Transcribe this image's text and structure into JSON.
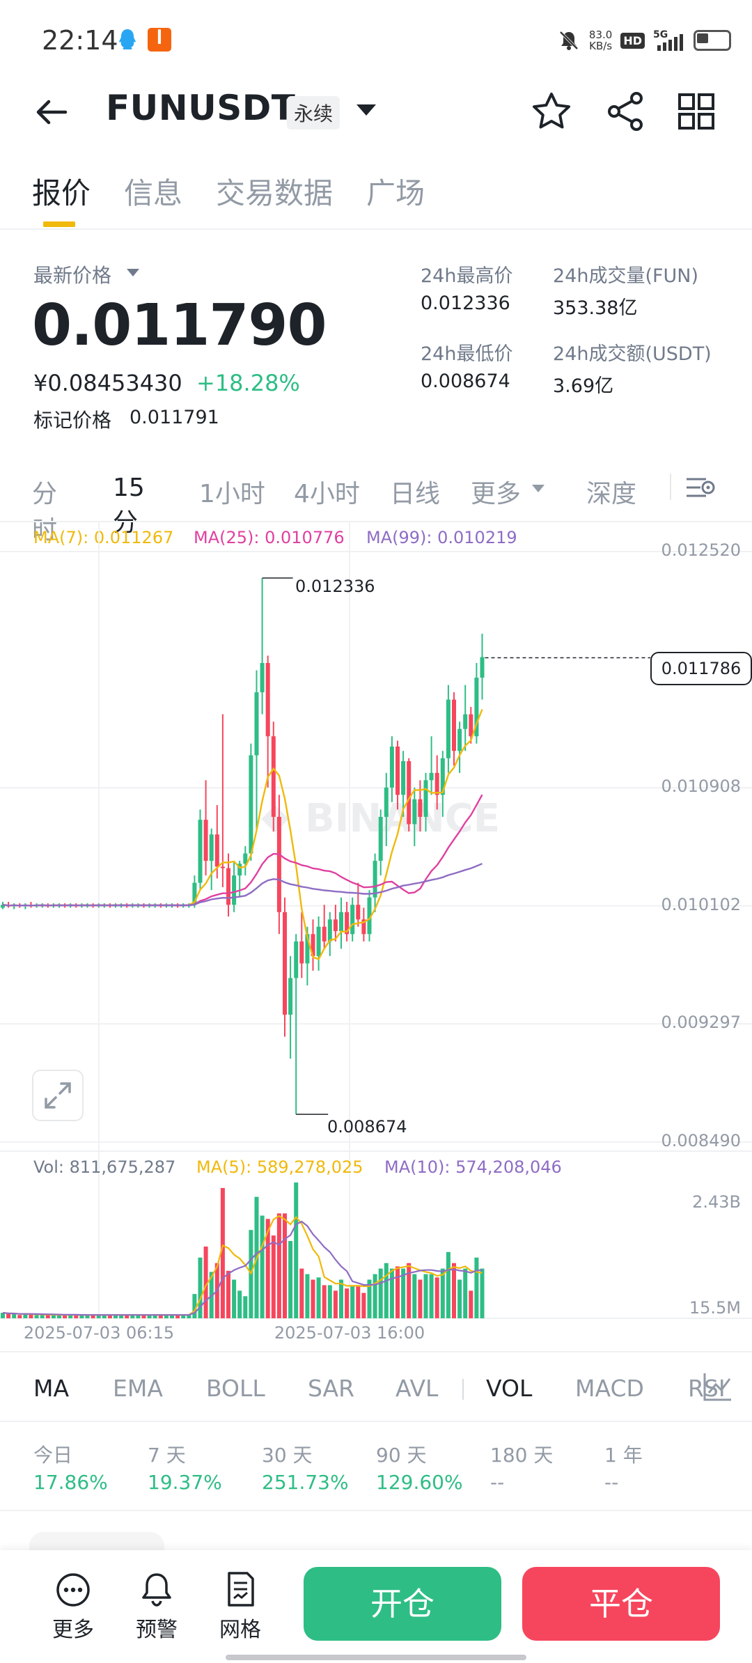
{
  "status_bar": {
    "time": "22:14",
    "app_badge": "",
    "net_speed_value": "83.0",
    "net_speed_unit": "KB/s",
    "hd": "HD",
    "network": "5G",
    "icons": [
      "qq-icon",
      "app-icon",
      "mute-icon",
      "signal-icon",
      "battery-icon"
    ]
  },
  "header": {
    "symbol": "FUNUSDT",
    "contract_type": "永续",
    "icons": [
      "back-arrow-icon",
      "chevron-down-icon",
      "star-icon",
      "share-icon",
      "grid-icon"
    ]
  },
  "tabs": [
    {
      "label": "报价",
      "active": true
    },
    {
      "label": "信息",
      "active": false
    },
    {
      "label": "交易数据",
      "active": false
    },
    {
      "label": "广场",
      "active": false
    }
  ],
  "price": {
    "last_label": "最新价格",
    "last": "0.011790",
    "cny": "¥0.08453430",
    "change": "+18.28%",
    "mark_label": "标记价格",
    "mark": "0.011791"
  },
  "stats": {
    "high_label": "24h最高价",
    "high": "0.012336",
    "low_label": "24h最低价",
    "low": "0.008674",
    "vol_label": "24h成交量(FUN)",
    "vol": "353.38亿",
    "turnover_label": "24h成交额(USDT)",
    "turnover": "3.69亿"
  },
  "intervals": [
    {
      "label": "分时",
      "active": false
    },
    {
      "label": "15分",
      "active": true
    },
    {
      "label": "1小时",
      "active": false
    },
    {
      "label": "4小时",
      "active": false
    },
    {
      "label": "日线",
      "active": false
    },
    {
      "label": "更多",
      "active": false
    },
    {
      "label": "深度",
      "active": false
    }
  ],
  "ma_legend": {
    "ma7": "MA(7): 0.011267",
    "ma25": "MA(25): 0.010776",
    "ma99": "MA(99): 0.010219"
  },
  "vol_legend": {
    "vol": "Vol: 811,675,287",
    "ma5": "MA(5): 589,278,025",
    "ma10": "MA(10): 574,208,046"
  },
  "colors": {
    "up": "#2ebd85",
    "down": "#f6465d",
    "ma7": "#f0b90b",
    "ma25": "#e040a0",
    "ma99": "#8e6cc4",
    "accent": "#f0b90b"
  },
  "chart_data": {
    "type": "candlestick",
    "price_axis_ticks": [
      "0.012520",
      "0.010908",
      "0.010102",
      "0.009297",
      "0.008490"
    ],
    "current_price_tag": "0.011786",
    "high_marker": "0.012336",
    "low_marker": "0.008674",
    "time_labels": [
      "2025-07-03 06:15",
      "2025-07-03 16:00"
    ],
    "volume_axis_ticks": [
      "2.43B",
      "15.5M"
    ],
    "ylim": [
      0.00849,
      0.01252
    ],
    "candles": [
      [
        0.01008,
        0.01012,
        0.01007,
        0.0101
      ],
      [
        0.0101,
        0.01012,
        0.01008,
        0.01009
      ],
      [
        0.01009,
        0.01011,
        0.01007,
        0.0101
      ],
      [
        0.0101,
        0.01011,
        0.01008,
        0.01009
      ],
      [
        0.01009,
        0.01011,
        0.01007,
        0.0101
      ],
      [
        0.0101,
        0.01012,
        0.01008,
        0.01009
      ],
      [
        0.01009,
        0.01011,
        0.01008,
        0.0101
      ],
      [
        0.0101,
        0.01011,
        0.01008,
        0.0101
      ],
      [
        0.0101,
        0.01011,
        0.01008,
        0.01009
      ],
      [
        0.01009,
        0.01011,
        0.01008,
        0.0101
      ],
      [
        0.0101,
        0.01011,
        0.01008,
        0.0101
      ],
      [
        0.0101,
        0.01011,
        0.01008,
        0.01009
      ],
      [
        0.01009,
        0.01011,
        0.01008,
        0.0101
      ],
      [
        0.0101,
        0.01011,
        0.01008,
        0.01009
      ],
      [
        0.01009,
        0.01011,
        0.01008,
        0.0101
      ],
      [
        0.0101,
        0.01011,
        0.01008,
        0.0101
      ],
      [
        0.0101,
        0.01011,
        0.01008,
        0.01009
      ],
      [
        0.01009,
        0.01011,
        0.01008,
        0.0101
      ],
      [
        0.0101,
        0.01011,
        0.01008,
        0.0101
      ],
      [
        0.0101,
        0.01011,
        0.01008,
        0.01009
      ],
      [
        0.01009,
        0.01011,
        0.01008,
        0.0101
      ],
      [
        0.0101,
        0.01011,
        0.01008,
        0.0101
      ],
      [
        0.0101,
        0.01011,
        0.01008,
        0.01009
      ],
      [
        0.01009,
        0.01011,
        0.01008,
        0.0101
      ],
      [
        0.0101,
        0.01011,
        0.01008,
        0.0101
      ],
      [
        0.0101,
        0.01011,
        0.01008,
        0.01009
      ],
      [
        0.01009,
        0.01011,
        0.01008,
        0.0101
      ],
      [
        0.0101,
        0.01011,
        0.01008,
        0.0101
      ],
      [
        0.0101,
        0.01011,
        0.01008,
        0.01009
      ],
      [
        0.01009,
        0.01011,
        0.01008,
        0.0101
      ],
      [
        0.0101,
        0.01011,
        0.01008,
        0.0101
      ],
      [
        0.0101,
        0.01011,
        0.01008,
        0.01009
      ],
      [
        0.01009,
        0.01011,
        0.01008,
        0.0101
      ],
      [
        0.0101,
        0.01011,
        0.01008,
        0.0101
      ],
      [
        0.0101,
        0.0103,
        0.01008,
        0.01025
      ],
      [
        0.01025,
        0.01075,
        0.0102,
        0.01068
      ],
      [
        0.01068,
        0.01095,
        0.0103,
        0.0104
      ],
      [
        0.0104,
        0.01062,
        0.0102,
        0.01058
      ],
      [
        0.01058,
        0.01078,
        0.01028,
        0.01036
      ],
      [
        0.01036,
        0.0114,
        0.01022,
        0.01035
      ],
      [
        0.01035,
        0.01045,
        0.01002,
        0.0101
      ],
      [
        0.0101,
        0.0104,
        0.01005,
        0.0103
      ],
      [
        0.0103,
        0.0104,
        0.01015,
        0.01038
      ],
      [
        0.01038,
        0.0105,
        0.0103,
        0.01045
      ],
      [
        0.01045,
        0.0112,
        0.0104,
        0.01112
      ],
      [
        0.01112,
        0.0117,
        0.0106,
        0.01155
      ],
      [
        0.01155,
        0.01233,
        0.0114,
        0.01175
      ],
      [
        0.01175,
        0.0118,
        0.0109,
        0.01125
      ],
      [
        0.01125,
        0.01135,
        0.0106,
        0.0107
      ],
      [
        0.0107,
        0.01085,
        0.0099,
        0.01005
      ],
      [
        0.01005,
        0.01015,
        0.0092,
        0.00935
      ],
      [
        0.00935,
        0.00975,
        0.00905,
        0.0096
      ],
      [
        0.0096,
        0.0099,
        0.00867,
        0.00985
      ],
      [
        0.00985,
        0.01005,
        0.0096,
        0.0097
      ],
      [
        0.0097,
        0.00995,
        0.00955,
        0.0099
      ],
      [
        0.0099,
        0.01,
        0.00965,
        0.00975
      ],
      [
        0.00975,
        0.01002,
        0.00965,
        0.00995
      ],
      [
        0.00995,
        0.0101,
        0.0098,
        0.00985
      ],
      [
        0.00985,
        0.01005,
        0.00975,
        0.01
      ],
      [
        0.01,
        0.0101,
        0.00985,
        0.00992
      ],
      [
        0.00992,
        0.01015,
        0.0098,
        0.01005
      ],
      [
        0.01005,
        0.01012,
        0.00985,
        0.0099
      ],
      [
        0.0099,
        0.01015,
        0.00985,
        0.0101
      ],
      [
        0.0101,
        0.01025,
        0.00995,
        0.01
      ],
      [
        0.01,
        0.01008,
        0.00985,
        0.0099
      ],
      [
        0.0099,
        0.0102,
        0.00985,
        0.01015
      ],
      [
        0.01015,
        0.01045,
        0.01005,
        0.0104
      ],
      [
        0.0104,
        0.01075,
        0.0103,
        0.0107
      ],
      [
        0.0107,
        0.011,
        0.0105,
        0.0109
      ],
      [
        0.0109,
        0.01125,
        0.0108,
        0.01118
      ],
      [
        0.01118,
        0.01122,
        0.01075,
        0.01085
      ],
      [
        0.01085,
        0.01115,
        0.0107,
        0.01108
      ],
      [
        0.01108,
        0.0111,
        0.0106,
        0.01065
      ],
      [
        0.01065,
        0.0109,
        0.0105,
        0.01082
      ],
      [
        0.01082,
        0.01095,
        0.0106,
        0.0107
      ],
      [
        0.0107,
        0.011,
        0.0106,
        0.01095
      ],
      [
        0.01095,
        0.01125,
        0.01085,
        0.011
      ],
      [
        0.011,
        0.01112,
        0.01075,
        0.01085
      ],
      [
        0.01085,
        0.01115,
        0.0107,
        0.0111
      ],
      [
        0.0111,
        0.0116,
        0.011,
        0.0115
      ],
      [
        0.0115,
        0.01155,
        0.01105,
        0.01115
      ],
      [
        0.01115,
        0.01135,
        0.011,
        0.0113
      ],
      [
        0.0113,
        0.0116,
        0.01115,
        0.0114
      ],
      [
        0.0114,
        0.01145,
        0.0112,
        0.01125
      ],
      [
        0.01125,
        0.01175,
        0.0112,
        0.01165
      ],
      [
        0.01165,
        0.01195,
        0.0115,
        0.01179
      ]
    ]
  }
}
